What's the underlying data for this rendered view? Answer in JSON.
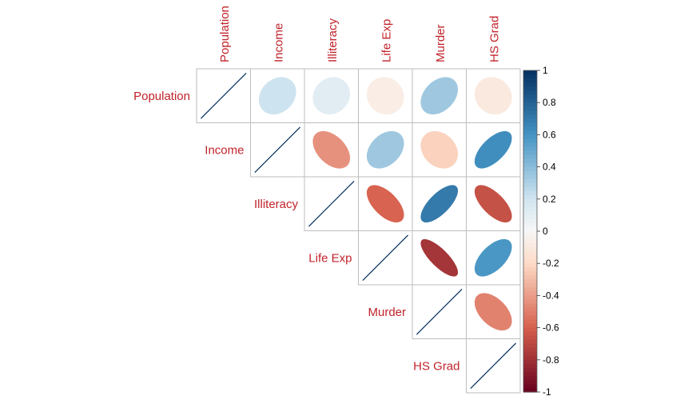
{
  "chart_data": {
    "type": "heatmap",
    "variables": [
      "Population",
      "Income",
      "Illiteracy",
      "Life Exp",
      "Murder",
      "HS Grad"
    ],
    "matrix": [
      [
        1.0,
        0.21,
        0.11,
        -0.07,
        0.34,
        -0.1
      ],
      [
        0.21,
        1.0,
        -0.44,
        0.34,
        -0.23,
        0.62
      ],
      [
        0.11,
        -0.44,
        1.0,
        -0.59,
        0.7,
        -0.66
      ],
      [
        -0.07,
        0.34,
        -0.59,
        1.0,
        -0.78,
        0.58
      ],
      [
        0.34,
        -0.23,
        0.7,
        -0.78,
        1.0,
        -0.49
      ],
      [
        -0.1,
        0.62,
        -0.66,
        0.58,
        -0.49,
        1.0
      ]
    ],
    "display": "upper triangle, ellipses",
    "colorbar": {
      "range": [
        -1,
        1
      ],
      "ticks": [
        "1",
        "0.8",
        "0.6",
        "0.4",
        "0.2",
        "0",
        "-0.2",
        "-0.4",
        "-0.6",
        "-0.8",
        "-1"
      ]
    },
    "colors": {
      "neg_dark": "#67001f",
      "neg_mid": "#d6604d",
      "neg_light": "#fddbc7",
      "neutral": "#f7f7f7",
      "pos_light": "#d1e5f0",
      "pos_mid": "#4393c3",
      "pos_dark": "#053061",
      "label": "#c0232a",
      "grid": "#bdbdbd"
    }
  }
}
